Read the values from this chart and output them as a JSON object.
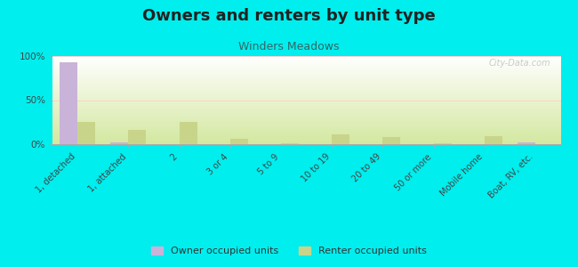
{
  "title": "Owners and renters by unit type",
  "subtitle": "Winders Meadows",
  "categories": [
    "1, detached",
    "1, attached",
    "2",
    "3 or 4",
    "5 to 9",
    "10 to 19",
    "20 to 49",
    "50 or more",
    "Mobile home",
    "Boat, RV, etc."
  ],
  "owner_values": [
    93,
    2,
    0,
    0,
    0,
    0,
    0,
    0,
    0,
    2
  ],
  "renter_values": [
    25,
    16,
    25,
    6,
    1,
    11,
    8,
    1,
    9,
    0
  ],
  "owner_color": "#c9b3d9",
  "renter_color": "#c8d48a",
  "background_top": "#ffffff",
  "background_bottom": "#d4e8a0",
  "outer_bg": "#00eeee",
  "ylim": [
    0,
    100
  ],
  "yticks": [
    0,
    50,
    100
  ],
  "ytick_labels": [
    "0%",
    "50%",
    "100%"
  ],
  "bar_width": 0.35,
  "title_fontsize": 13,
  "subtitle_fontsize": 9,
  "subtitle_color": "#336666",
  "tick_color": "#444444",
  "legend_owner": "Owner occupied units",
  "legend_renter": "Renter occupied units",
  "watermark": "City-Data.com"
}
